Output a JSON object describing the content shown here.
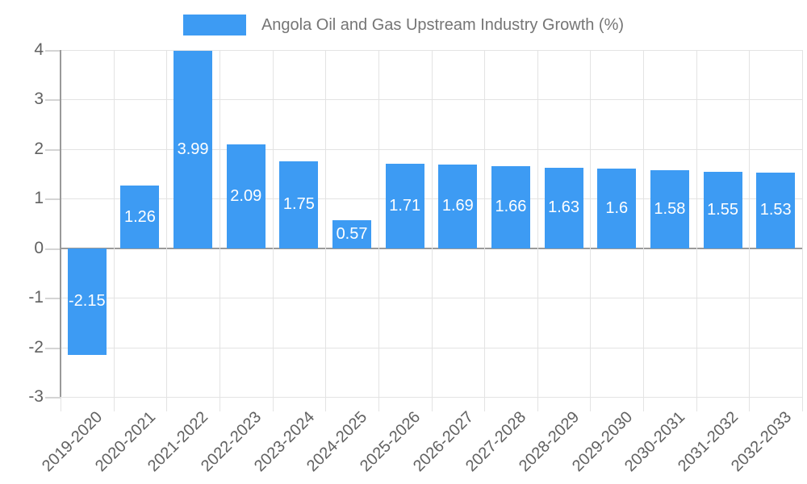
{
  "chart_data": {
    "type": "bar",
    "title": "Angola Oil and Gas Upstream Industry Growth (%)",
    "legend_position": "top",
    "categories": [
      "2019-2020",
      "2020-2021",
      "2021-2022",
      "2022-2023",
      "2023-2024",
      "2024-2025",
      "2025-2026",
      "2026-2027",
      "2027-2028",
      "2028-2029",
      "2029-2030",
      "2030-2031",
      "2031-2032",
      "2032-2033"
    ],
    "values": [
      -2.15,
      1.26,
      3.99,
      2.09,
      1.75,
      0.57,
      1.71,
      1.69,
      1.66,
      1.63,
      1.6,
      1.58,
      1.55,
      1.53
    ],
    "value_labels": [
      "-2.15",
      "1.26",
      "3.99",
      "2.09",
      "1.75",
      "0.57",
      "1.71",
      "1.69",
      "1.66",
      "1.63",
      "1.6",
      "1.58",
      "1.55",
      "1.53"
    ],
    "xlabel": "",
    "ylabel": "",
    "ylim": [
      -3,
      4
    ],
    "yticks": [
      4,
      3,
      2,
      1,
      0,
      -1,
      -2,
      -3
    ],
    "grid": true,
    "colors": {
      "bar": "#3D9BF3",
      "grid_line": "#E3E3E3",
      "zero_axis_line": "#9A9A9A",
      "tick_line": "#D4D4D4",
      "axis_label": "#616161",
      "title_text": "#757575",
      "value_label_text": "#FFFFFF",
      "background": "#FFFFFF"
    }
  }
}
